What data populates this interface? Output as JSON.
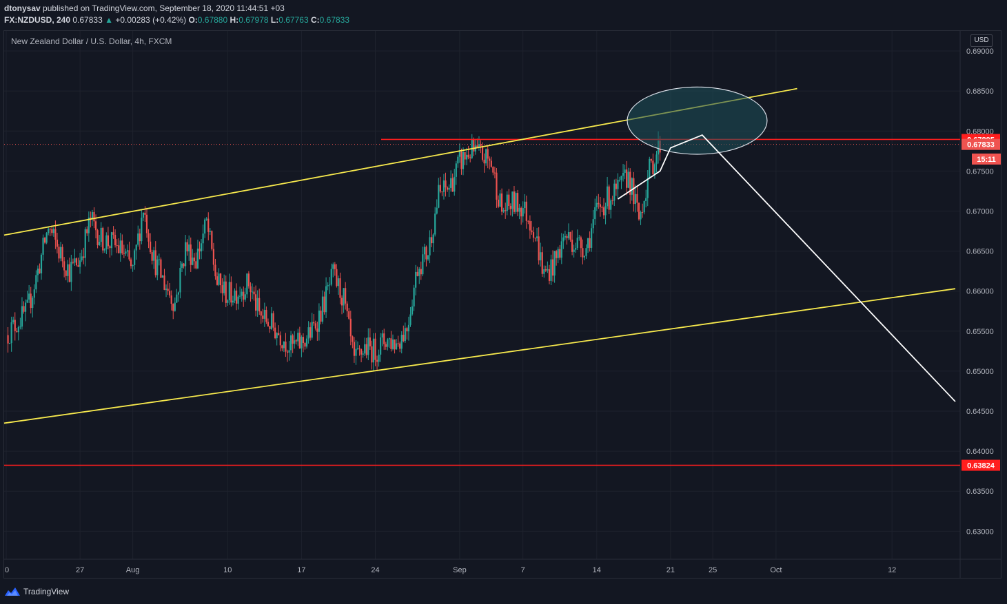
{
  "header": {
    "author": "dtonysav",
    "published_text": "published on TradingView.com, September 18, 2020 11:44:51 +03",
    "symbol": "FX:NZDUSD, 240",
    "last": "0.67833",
    "change": "+0.00283 (+0.42%)",
    "open_label": "O:",
    "open": "0.67880",
    "high_label": "H:",
    "high": "0.67978",
    "low_label": "L:",
    "low": "0.67763",
    "close_label": "C:",
    "close": "0.67833"
  },
  "chart_title": "New Zealand Dollar / U.S. Dollar, 4h, FXCM",
  "currency": "USD",
  "footer": {
    "brand": "TradingView"
  },
  "colors": {
    "background": "#131722",
    "up": "#26a69a",
    "down": "#ef5350",
    "channel": "#f7e94d",
    "level": "#ff1e1e",
    "projection": "#ffffff",
    "grid": "#1e222d"
  },
  "chart_data": {
    "type": "candlestick",
    "title": "New Zealand Dollar / U.S. Dollar, 4h, FXCM",
    "ylim": [
      0.6265,
      0.6925
    ],
    "y_ticks": [
      "0.69000",
      "0.68500",
      "0.68000",
      "0.67500",
      "0.67000",
      "0.66500",
      "0.66000",
      "0.65500",
      "0.65000",
      "0.64500",
      "0.64000",
      "0.63500",
      "0.63000"
    ],
    "x_ticks": [
      {
        "label": "0",
        "day": 0
      },
      {
        "label": "27",
        "day": 7
      },
      {
        "label": "Aug",
        "day": 12
      },
      {
        "label": "10",
        "day": 21
      },
      {
        "label": "17",
        "day": 28
      },
      {
        "label": "24",
        "day": 35
      },
      {
        "label": "Sep",
        "day": 43
      },
      {
        "label": "7",
        "day": 49
      },
      {
        "label": "14",
        "day": 56
      },
      {
        "label": "21",
        "day": 63
      },
      {
        "label": "25",
        "day": 67
      },
      {
        "label": "Oct",
        "day": 73
      },
      {
        "label": "12",
        "day": 84
      }
    ],
    "price_labels": [
      {
        "text": "0.67895",
        "value": 0.67895,
        "color": "#ff1e1e"
      },
      {
        "text": "0.67833",
        "value": 0.67833,
        "color": "#ef5350"
      },
      {
        "text": "15:11",
        "value": 0.6765,
        "color": "#ef5350"
      },
      {
        "text": "0.63824",
        "value": 0.63824,
        "color": "#ff1e1e"
      }
    ],
    "close_series": [
      {
        "day": 0,
        "close": 0.6545
      },
      {
        "day": 2,
        "close": 0.6575
      },
      {
        "day": 3,
        "close": 0.6625
      },
      {
        "day": 4,
        "close": 0.668
      },
      {
        "day": 5,
        "close": 0.665
      },
      {
        "day": 6,
        "close": 0.6625
      },
      {
        "day": 7,
        "close": 0.664
      },
      {
        "day": 8,
        "close": 0.669
      },
      {
        "day": 9,
        "close": 0.6665
      },
      {
        "day": 10,
        "close": 0.666
      },
      {
        "day": 11,
        "close": 0.665
      },
      {
        "day": 12,
        "close": 0.6625
      },
      {
        "day": 13,
        "close": 0.6705
      },
      {
        "day": 14,
        "close": 0.664
      },
      {
        "day": 15,
        "close": 0.661
      },
      {
        "day": 16,
        "close": 0.6585
      },
      {
        "day": 17,
        "close": 0.6655
      },
      {
        "day": 18,
        "close": 0.664
      },
      {
        "day": 19,
        "close": 0.6685
      },
      {
        "day": 20,
        "close": 0.661
      },
      {
        "day": 21,
        "close": 0.6595
      },
      {
        "day": 22,
        "close": 0.66
      },
      {
        "day": 23,
        "close": 0.661
      },
      {
        "day": 24,
        "close": 0.657
      },
      {
        "day": 25,
        "close": 0.656
      },
      {
        "day": 26,
        "close": 0.6545
      },
      {
        "day": 27,
        "close": 0.653
      },
      {
        "day": 28,
        "close": 0.6535
      },
      {
        "day": 29,
        "close": 0.655
      },
      {
        "day": 30,
        "close": 0.658
      },
      {
        "day": 31,
        "close": 0.662
      },
      {
        "day": 32,
        "close": 0.659
      },
      {
        "day": 33,
        "close": 0.651
      },
      {
        "day": 34,
        "close": 0.653
      },
      {
        "day": 35,
        "close": 0.6525
      },
      {
        "day": 36,
        "close": 0.654
      },
      {
        "day": 37,
        "close": 0.6535
      },
      {
        "day": 38,
        "close": 0.6555
      },
      {
        "day": 39,
        "close": 0.663
      },
      {
        "day": 40,
        "close": 0.665
      },
      {
        "day": 41,
        "close": 0.672
      },
      {
        "day": 42,
        "close": 0.673
      },
      {
        "day": 43,
        "close": 0.676
      },
      {
        "day": 44,
        "close": 0.6775
      },
      {
        "day": 45,
        "close": 0.677
      },
      {
        "day": 46,
        "close": 0.676
      },
      {
        "day": 47,
        "close": 0.67
      },
      {
        "day": 48,
        "close": 0.671
      },
      {
        "day": 49,
        "close": 0.6705
      },
      {
        "day": 50,
        "close": 0.668
      },
      {
        "day": 51,
        "close": 0.662
      },
      {
        "day": 52,
        "close": 0.6635
      },
      {
        "day": 53,
        "close": 0.667
      },
      {
        "day": 54,
        "close": 0.666
      },
      {
        "day": 55,
        "close": 0.6655
      },
      {
        "day": 56,
        "close": 0.67
      },
      {
        "day": 57,
        "close": 0.6715
      },
      {
        "day": 58,
        "close": 0.6725
      },
      {
        "day": 59,
        "close": 0.6745
      },
      {
        "day": 60,
        "close": 0.669
      },
      {
        "day": 61,
        "close": 0.675
      },
      {
        "day": 62,
        "close": 0.67833
      }
    ],
    "horizontal_levels": [
      0.67895,
      0.63824
    ],
    "channel_upper": {
      "from": {
        "day": 0,
        "value": 0.667
      },
      "to": {
        "day": 75,
        "value": 0.6853
      }
    },
    "channel_lower": {
      "from": {
        "day": 0,
        "value": 0.6435
      },
      "to": {
        "day": 90,
        "value": 0.6603
      }
    },
    "projection": [
      {
        "day": 58,
        "value": 0.6715
      },
      {
        "day": 62,
        "value": 0.675
      },
      {
        "day": 63,
        "value": 0.6779
      },
      {
        "day": 66,
        "value": 0.6795
      },
      {
        "day": 90,
        "value": 0.6462
      }
    ],
    "ellipse": {
      "day": 65,
      "value": 0.6813,
      "rx_days": 6.5,
      "ry_value": 0.0042
    }
  }
}
